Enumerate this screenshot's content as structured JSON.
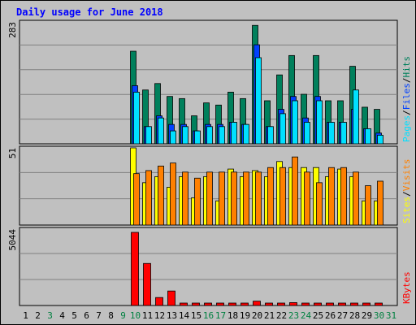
{
  "chart_data": [
    {
      "type": "bar",
      "panel": "hits-files-pages",
      "title": "Daily usage for June 2018",
      "ymax_label": "283",
      "ylim": [
        0,
        283
      ],
      "legend": [
        {
          "name": "Hits",
          "color": "#00805c"
        },
        {
          "name": "Files",
          "color": "#0040ff"
        },
        {
          "name": "Pages",
          "color": "#00e0ff"
        }
      ],
      "categories": [
        "1",
        "2",
        "3",
        "4",
        "5",
        "6",
        "7",
        "8",
        "9",
        "10",
        "11",
        "12",
        "13",
        "14",
        "15",
        "16",
        "17",
        "18",
        "19",
        "20",
        "21",
        "22",
        "23",
        "24",
        "25",
        "26",
        "27",
        "28",
        "29",
        "30",
        "31"
      ],
      "series": [
        {
          "name": "Hits",
          "values": [
            0,
            0,
            0,
            0,
            0,
            0,
            0,
            0,
            0,
            215,
            125,
            140,
            110,
            105,
            65,
            95,
            90,
            120,
            105,
            275,
            100,
            160,
            205,
            115,
            205,
            100,
            100,
            180,
            85,
            80,
            0
          ]
        },
        {
          "name": "Files",
          "values": [
            0,
            0,
            0,
            0,
            0,
            0,
            0,
            0,
            0,
            135,
            40,
            65,
            45,
            45,
            30,
            45,
            45,
            50,
            45,
            230,
            40,
            80,
            110,
            60,
            110,
            50,
            50,
            80,
            35,
            25,
            0
          ]
        },
        {
          "name": "Pages",
          "values": [
            0,
            0,
            0,
            0,
            0,
            0,
            0,
            0,
            0,
            120,
            40,
            60,
            30,
            40,
            30,
            40,
            40,
            50,
            45,
            200,
            40,
            70,
            100,
            50,
            100,
            50,
            50,
            125,
            35,
            20,
            0
          ]
        }
      ]
    },
    {
      "type": "bar",
      "panel": "visits-sites",
      "ymax_label": "51",
      "ylim": [
        0,
        51
      ],
      "legend": [
        {
          "name": "Visits",
          "color": "#ff8000"
        },
        {
          "name": "Sites",
          "color": "#ffff00"
        }
      ],
      "categories": [
        "1",
        "2",
        "3",
        "4",
        "5",
        "6",
        "7",
        "8",
        "9",
        "10",
        "11",
        "12",
        "13",
        "14",
        "15",
        "16",
        "17",
        "18",
        "19",
        "20",
        "21",
        "22",
        "23",
        "24",
        "25",
        "26",
        "27",
        "28",
        "29",
        "30",
        "31"
      ],
      "series": [
        {
          "name": "Sites",
          "values": [
            0,
            0,
            0,
            0,
            0,
            0,
            0,
            0,
            0,
            51,
            28,
            32,
            25,
            32,
            18,
            32,
            16,
            37,
            32,
            36,
            32,
            42,
            38,
            38,
            38,
            32,
            37,
            32,
            16,
            16,
            0
          ]
        },
        {
          "name": "Visits",
          "values": [
            0,
            0,
            0,
            0,
            0,
            0,
            0,
            0,
            0,
            34,
            36,
            39,
            41,
            35,
            31,
            35,
            35,
            35,
            35,
            35,
            38,
            38,
            45,
            35,
            28,
            38,
            38,
            35,
            26,
            29,
            0
          ]
        }
      ]
    },
    {
      "type": "bar",
      "panel": "kbytes",
      "ymax_label": "5044",
      "ylim": [
        0,
        5044
      ],
      "legend": [
        {
          "name": "KBytes",
          "color": "#ff0000"
        }
      ],
      "categories": [
        "1",
        "2",
        "3",
        "4",
        "5",
        "6",
        "7",
        "8",
        "9",
        "10",
        "11",
        "12",
        "13",
        "14",
        "15",
        "16",
        "17",
        "18",
        "19",
        "20",
        "21",
        "22",
        "23",
        "24",
        "25",
        "26",
        "27",
        "28",
        "29",
        "30",
        "31"
      ],
      "series": [
        {
          "name": "KBytes",
          "values": [
            0,
            0,
            0,
            0,
            0,
            0,
            0,
            0,
            0,
            5044,
            2900,
            550,
            1000,
            50,
            50,
            50,
            50,
            150,
            150,
            300,
            150,
            150,
            200,
            100,
            100,
            100,
            100,
            100,
            150,
            100,
            0
          ]
        }
      ]
    }
  ],
  "day_colors": [
    "#000000",
    "#000000",
    "#008040",
    "#000000",
    "#000000",
    "#000000",
    "#000000",
    "#000000",
    "#008040",
    "#008040",
    "#000000",
    "#000000",
    "#000000",
    "#000000",
    "#000000",
    "#008040",
    "#008040",
    "#000000",
    "#000000",
    "#000000",
    "#000000",
    "#000000",
    "#008040",
    "#008040",
    "#000000",
    "#000000",
    "#000000",
    "#000000",
    "#000000",
    "#008040",
    "#008040"
  ],
  "separator": "/"
}
